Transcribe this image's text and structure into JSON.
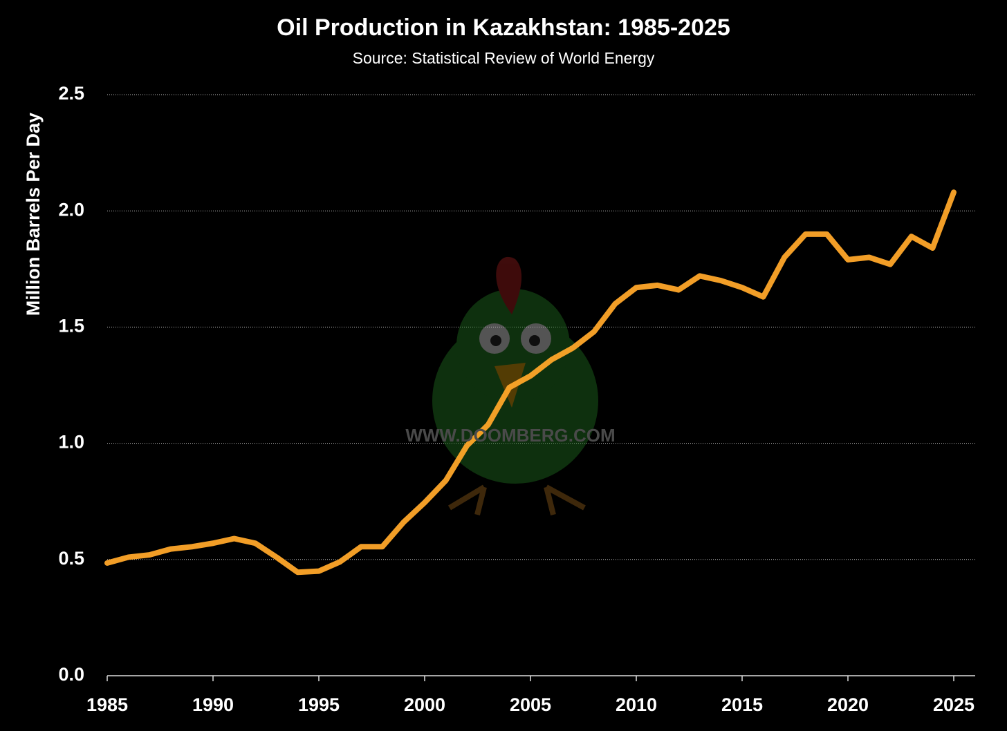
{
  "chart_data": {
    "type": "line",
    "title": "Oil Production in Kazakhstan: 1985-2025",
    "subtitle": "Source: Statistical Review of World Energy",
    "y_label": "Million Barrels Per Day",
    "watermark": "WWW.DOOMBERG.COM",
    "x": [
      1985,
      1986,
      1987,
      1988,
      1989,
      1990,
      1991,
      1992,
      1993,
      1994,
      1995,
      1996,
      1997,
      1998,
      1999,
      2000,
      2001,
      2002,
      2003,
      2004,
      2005,
      2006,
      2007,
      2008,
      2009,
      2010,
      2011,
      2012,
      2013,
      2014,
      2015,
      2016,
      2017,
      2018,
      2019,
      2020,
      2021,
      2022,
      2023,
      2024,
      2025
    ],
    "series": [
      {
        "name": "Kazakhstan",
        "color": "#ffa629",
        "values": [
          0.485,
          0.51,
          0.52,
          0.545,
          0.555,
          0.57,
          0.59,
          0.57,
          0.51,
          0.445,
          0.45,
          0.49,
          0.555,
          0.555,
          0.66,
          0.745,
          0.84,
          0.99,
          1.08,
          1.24,
          1.29,
          1.36,
          1.41,
          1.48,
          1.6,
          1.67,
          1.68,
          1.66,
          1.72,
          1.7,
          1.67,
          1.63,
          1.8,
          1.9,
          1.9,
          1.79,
          1.8,
          1.77,
          1.89,
          1.84,
          2.08
        ]
      }
    ],
    "xlim": [
      1985,
      2025
    ],
    "xticks": [
      1985,
      1990,
      1995,
      2000,
      2005,
      2010,
      2015,
      2020,
      2025
    ],
    "ylim": [
      0,
      2.5
    ],
    "yticks": [
      {
        "value": 0,
        "label": "0.0"
      },
      0.5,
      {
        "value": 1,
        "label": "1.0"
      },
      1.5,
      {
        "value": 2,
        "label": "2.0"
      },
      2.5
    ],
    "grid": true
  }
}
